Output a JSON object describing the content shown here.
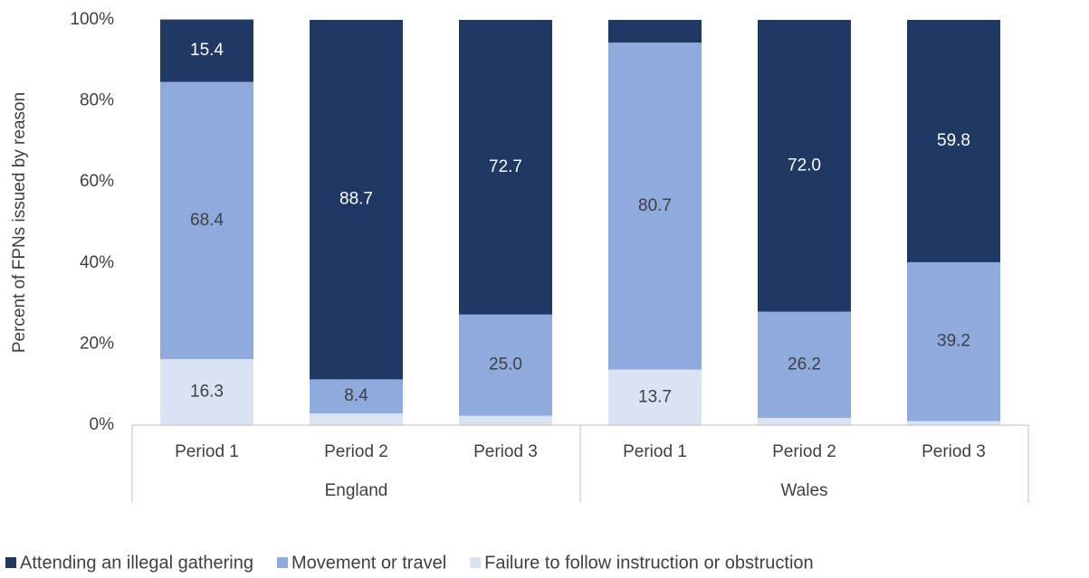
{
  "chart_data": {
    "type": "stacked_bar",
    "y_label": "Percent of FPNs issued by reason",
    "categories": [
      "Period 1",
      "Period 2",
      "Period 3",
      "Period 1",
      "Period 2",
      "Period 3"
    ],
    "groups": [
      "England",
      "Wales"
    ],
    "series": [
      {
        "name": "Failure to follow instruction or obstruction",
        "color": "#dae3f3",
        "label_color": "#404040",
        "values": [
          16.3,
          2.9,
          2.3,
          13.7,
          1.8,
          1.0
        ],
        "value_labels": [
          "16.3",
          null,
          null,
          "13.7",
          null,
          null
        ]
      },
      {
        "name": "Movement or travel",
        "color": "#8faadc",
        "label_color": "#404040",
        "values": [
          68.4,
          8.4,
          25.0,
          80.7,
          26.2,
          39.2
        ],
        "value_labels": [
          "68.4",
          "8.4",
          "25.0",
          "80.7",
          "26.2",
          "39.2"
        ]
      },
      {
        "name": "Attending an illegal gathering",
        "color": "#1f3864",
        "label_color": "#ffffff",
        "values": [
          15.4,
          88.7,
          72.7,
          5.6,
          72.0,
          59.8
        ],
        "value_labels": [
          "15.4",
          "88.7",
          "72.7",
          null,
          "72.0",
          "59.8"
        ]
      }
    ],
    "legend_order": [
      2,
      1,
      0
    ],
    "ylim": [
      0,
      100
    ],
    "yticks": [
      {
        "value": 0,
        "label": "0%"
      },
      {
        "value": 20,
        "label": "20%"
      },
      {
        "value": 40,
        "label": "40%"
      },
      {
        "value": 60,
        "label": "60%"
      },
      {
        "value": 80,
        "label": "80%"
      },
      {
        "value": 100,
        "label": "100%"
      }
    ]
  }
}
